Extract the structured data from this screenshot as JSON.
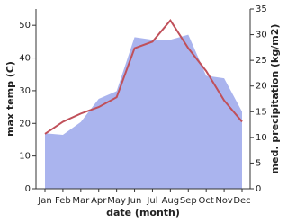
{
  "chart_data": {
    "type": "line",
    "categories": [
      "Jan",
      "Feb",
      "Mar",
      "Apr",
      "May",
      "Jun",
      "Jul",
      "Aug",
      "Sep",
      "Oct",
      "Nov",
      "Dec"
    ],
    "x_label": "date (month)",
    "y_label": "max temp (C)",
    "y2_label": "med. precipitation (kg/m2)",
    "ylim": [
      0,
      55
    ],
    "yticks": [
      0,
      10,
      20,
      30,
      40,
      50
    ],
    "y2lim": [
      0,
      35
    ],
    "y2ticks": [
      0,
      5,
      10,
      15,
      20,
      25,
      30,
      35
    ],
    "series": [
      {
        "name": "med. precipitation",
        "type": "area",
        "axis": "y2",
        "color": "#aab4ee",
        "values": [
          10.8,
          10.5,
          13,
          17.5,
          19,
          29.5,
          29,
          29,
          30,
          22,
          21.5,
          15
        ]
      },
      {
        "name": "max temp",
        "type": "line",
        "axis": "y",
        "color": "#c0505a",
        "values": [
          16.8,
          20.5,
          23,
          25,
          28,
          43,
          45,
          51.5,
          43,
          36,
          27,
          20.5
        ]
      }
    ]
  }
}
